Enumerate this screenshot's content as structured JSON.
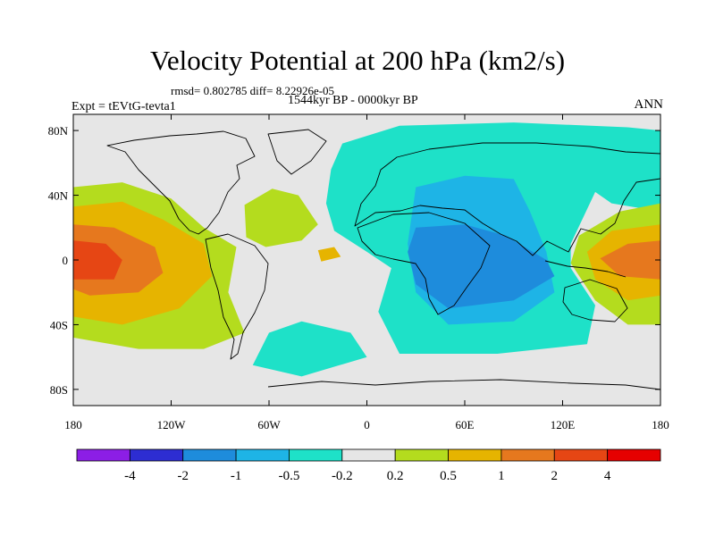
{
  "title": "Velocity Potential at 200 hPa (km2/s)",
  "stats": "rmsd= 0.802785 diff= 8.22926e-05",
  "period": "1544kyr BP - 0000kyr BP",
  "expt": "Expt = tEVtG-tevta1",
  "season": "ANN",
  "chart_data": {
    "type": "heatmap",
    "title": "Velocity Potential at 200 hPa (km2/s)",
    "subtitle": "1544kyr BP - 0000kyr BP",
    "x_ticks": [
      {
        "value": -180,
        "label": "180"
      },
      {
        "value": -120,
        "label": "120W"
      },
      {
        "value": -60,
        "label": "60W"
      },
      {
        "value": 0,
        "label": "0"
      },
      {
        "value": 60,
        "label": "60E"
      },
      {
        "value": 120,
        "label": "120E"
      },
      {
        "value": 180,
        "label": "180"
      }
    ],
    "y_ticks": [
      {
        "value": 80,
        "label": "80N"
      },
      {
        "value": 40,
        "label": "40N"
      },
      {
        "value": 0,
        "label": "0"
      },
      {
        "value": -40,
        "label": "40S"
      },
      {
        "value": -80,
        "label": "80S"
      }
    ],
    "xlim": [
      -180,
      180
    ],
    "ylim": [
      -90,
      90
    ],
    "contour_levels": [
      "-4",
      "-2",
      "-1",
      "-0.5",
      "-0.2",
      "0.2",
      "0.5",
      "1",
      "2",
      "4"
    ],
    "colors": [
      "#8c1ee6",
      "#2d2dd2",
      "#1e8cdc",
      "#1eb4e6",
      "#1ee1c8",
      "#e6e6e6",
      "#b4dc1e",
      "#e6b400",
      "#e6781e",
      "#e64614",
      "#e60000"
    ],
    "regions": [
      {
        "name": "east-pacific-positive",
        "level": 0.5,
        "points": [
          [
            -180,
            45
          ],
          [
            -150,
            48
          ],
          [
            -120,
            38
          ],
          [
            -100,
            20
          ],
          [
            -80,
            8
          ],
          [
            -85,
            -20
          ],
          [
            -75,
            -45
          ],
          [
            -100,
            -55
          ],
          [
            -140,
            -55
          ],
          [
            -180,
            -48
          ]
        ]
      },
      {
        "name": "east-pacific-core-1",
        "level": 1,
        "points": [
          [
            -180,
            33
          ],
          [
            -150,
            36
          ],
          [
            -125,
            25
          ],
          [
            -100,
            10
          ],
          [
            -95,
            -10
          ],
          [
            -115,
            -30
          ],
          [
            -150,
            -40
          ],
          [
            -180,
            -35
          ]
        ]
      },
      {
        "name": "east-pacific-core-2",
        "level": 2,
        "points": [
          [
            -180,
            22
          ],
          [
            -155,
            20
          ],
          [
            -130,
            8
          ],
          [
            -125,
            -8
          ],
          [
            -140,
            -20
          ],
          [
            -170,
            -22
          ],
          [
            -180,
            -18
          ]
        ]
      },
      {
        "name": "east-pacific-core-4",
        "level": 4,
        "points": [
          [
            -180,
            12
          ],
          [
            -160,
            10
          ],
          [
            -150,
            0
          ],
          [
            -155,
            -12
          ],
          [
            -180,
            -12
          ]
        ]
      },
      {
        "name": "atlantic-positive",
        "level": 0.5,
        "points": [
          [
            -75,
            34
          ],
          [
            -58,
            44
          ],
          [
            -42,
            40
          ],
          [
            -30,
            22
          ],
          [
            -40,
            12
          ],
          [
            -62,
            8
          ],
          [
            -74,
            14
          ]
        ]
      },
      {
        "name": "atlantic-small-positive",
        "level": 1,
        "points": [
          [
            -30,
            6
          ],
          [
            -20,
            8
          ],
          [
            -16,
            2
          ],
          [
            -28,
            -1
          ]
        ]
      },
      {
        "name": "africa-asia-negative",
        "level": -0.2,
        "points": [
          [
            -22,
            56
          ],
          [
            -15,
            72
          ],
          [
            20,
            83
          ],
          [
            90,
            85
          ],
          [
            160,
            82
          ],
          [
            180,
            80
          ],
          [
            180,
            30
          ],
          [
            150,
            35
          ],
          [
            140,
            42
          ],
          [
            125,
            10
          ],
          [
            125,
            -5
          ],
          [
            140,
            -28
          ],
          [
            135,
            -52
          ],
          [
            80,
            -58
          ],
          [
            20,
            -58
          ],
          [
            7,
            -32
          ],
          [
            15,
            -5
          ],
          [
            0,
            5
          ],
          [
            -20,
            18
          ],
          [
            -25,
            35
          ]
        ]
      },
      {
        "name": "africa-asia-core",
        "level": -0.5,
        "points": [
          [
            30,
            45
          ],
          [
            60,
            52
          ],
          [
            90,
            50
          ],
          [
            100,
            30
          ],
          [
            110,
            5
          ],
          [
            115,
            -20
          ],
          [
            90,
            -38
          ],
          [
            50,
            -40
          ],
          [
            30,
            -20
          ],
          [
            25,
            10
          ]
        ]
      },
      {
        "name": "africa-asia-inner",
        "level": -1,
        "points": [
          [
            30,
            20
          ],
          [
            60,
            22
          ],
          [
            85,
            15
          ],
          [
            110,
            0
          ],
          [
            115,
            -10
          ],
          [
            90,
            -25
          ],
          [
            50,
            -30
          ],
          [
            30,
            -15
          ],
          [
            25,
            5
          ]
        ]
      },
      {
        "name": "west-pacific-positive",
        "level": 0.5,
        "points": [
          [
            180,
            35
          ],
          [
            155,
            30
          ],
          [
            130,
            15
          ],
          [
            125,
            -2
          ],
          [
            140,
            -25
          ],
          [
            160,
            -40
          ],
          [
            180,
            -40
          ]
        ]
      },
      {
        "name": "west-pacific-core-1",
        "level": 1,
        "points": [
          [
            180,
            22
          ],
          [
            150,
            18
          ],
          [
            135,
            5
          ],
          [
            140,
            -12
          ],
          [
            160,
            -25
          ],
          [
            180,
            -22
          ]
        ]
      },
      {
        "name": "west-pacific-core-2",
        "level": 2,
        "points": [
          [
            180,
            12
          ],
          [
            160,
            10
          ],
          [
            143,
            1
          ],
          [
            155,
            -10
          ],
          [
            180,
            -12
          ]
        ]
      },
      {
        "name": "southern-ocean-negative",
        "level": -0.2,
        "points": [
          [
            -60,
            -45
          ],
          [
            -40,
            -38
          ],
          [
            -10,
            -45
          ],
          [
            0,
            -60
          ],
          [
            -40,
            -72
          ],
          [
            -70,
            -65
          ]
        ]
      }
    ]
  }
}
